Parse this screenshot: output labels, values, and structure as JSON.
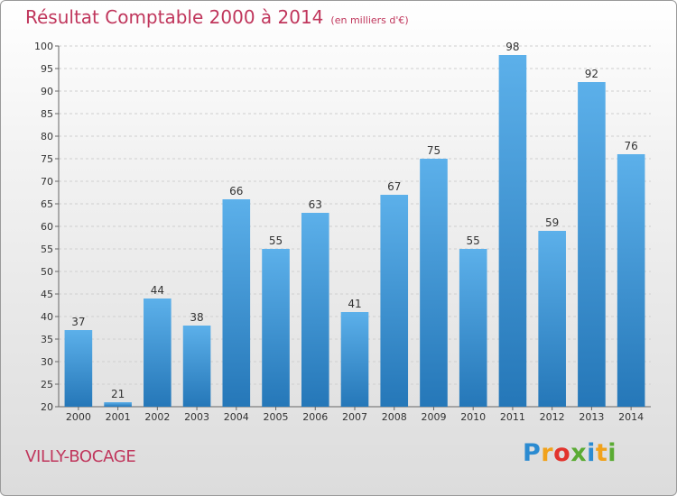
{
  "header": {
    "title": "Résultat Comptable 2000 à 2014",
    "subtitle": "(en milliers d'€)"
  },
  "footer": {
    "place": "VILLY-BOCAGE",
    "logo_letters": [
      "P",
      "r",
      "o",
      "x",
      "i",
      "t",
      "i"
    ],
    "logo_colors": [
      "#2b8bd1",
      "#f1a21b",
      "#e2342d",
      "#5aab33",
      "#2b8bd1",
      "#f1a21b",
      "#5aab33"
    ]
  },
  "colors": {
    "bar_light": "#5cb0ea",
    "bar_dark": "#2577b8",
    "title": "#c0365c",
    "grid": "#cfcfcf"
  },
  "chart_data": {
    "type": "bar",
    "title": "Résultat Comptable 2000 à 2014",
    "subtitle": "(en milliers d'€)",
    "categories": [
      "2000",
      "2001",
      "2002",
      "2003",
      "2004",
      "2005",
      "2006",
      "2007",
      "2008",
      "2009",
      "2010",
      "2011",
      "2012",
      "2013",
      "2014"
    ],
    "values": [
      37,
      21,
      44,
      38,
      66,
      55,
      63,
      41,
      67,
      75,
      55,
      98,
      59,
      92,
      76
    ],
    "ylim": [
      20,
      100
    ],
    "yticks": [
      20,
      25,
      30,
      35,
      40,
      45,
      50,
      55,
      60,
      65,
      70,
      75,
      80,
      85,
      90,
      95,
      100
    ],
    "grid": true,
    "data_labels": true,
    "xlabel": "",
    "ylabel": ""
  }
}
